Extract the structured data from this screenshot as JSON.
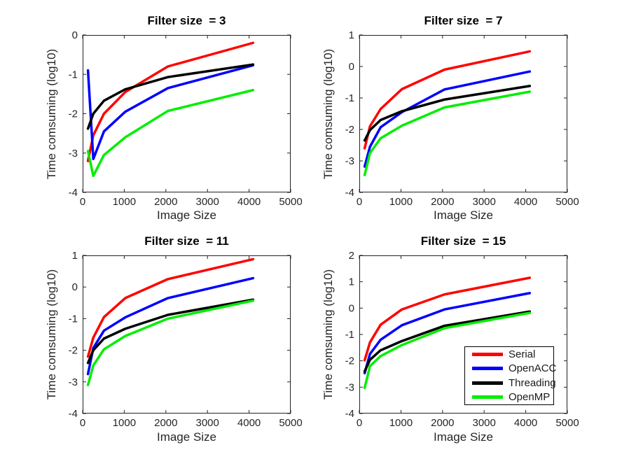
{
  "figure": {
    "background": "#ffffff"
  },
  "series_colors": {
    "Serial": "#ff0000",
    "OpenACC": "#0000ff",
    "Threading": "#000000",
    "OpenMP": "#00ee00"
  },
  "chart_data": [
    {
      "type": "line",
      "title": "Filter size  = 3",
      "xlabel": "Image Size",
      "ylabel": "Time comsuming (log10)",
      "xlim": [
        0,
        5000
      ],
      "ylim": [
        -4,
        0
      ],
      "xticks": [
        0,
        1000,
        2000,
        3000,
        4000,
        5000
      ],
      "yticks": [
        0,
        -1,
        -2,
        -3,
        -4
      ],
      "grid": false,
      "x": [
        128,
        256,
        512,
        1024,
        2048,
        4096
      ],
      "series": [
        {
          "name": "Serial",
          "color": "#ff0000",
          "values": [
            -3.2,
            -2.55,
            -2.0,
            -1.45,
            -0.8,
            -0.2
          ]
        },
        {
          "name": "OpenACC",
          "color": "#0000ff",
          "values": [
            -0.9,
            -3.15,
            -2.45,
            -1.95,
            -1.35,
            -0.77
          ]
        },
        {
          "name": "Threading",
          "color": "#000000",
          "values": [
            -2.38,
            -2.0,
            -1.67,
            -1.38,
            -1.07,
            -0.75
          ]
        },
        {
          "name": "OpenMP",
          "color": "#00ee00",
          "values": [
            -2.95,
            -3.58,
            -3.05,
            -2.6,
            -1.93,
            -1.4
          ]
        }
      ]
    },
    {
      "type": "line",
      "title": "Filter size  = 7",
      "xlabel": "Image Size",
      "ylabel": "Time comsuming (log10)",
      "xlim": [
        0,
        5000
      ],
      "ylim": [
        -4,
        1
      ],
      "xticks": [
        0,
        1000,
        2000,
        3000,
        4000,
        5000
      ],
      "yticks": [
        1,
        0,
        -1,
        -2,
        -3,
        -4
      ],
      "grid": false,
      "x": [
        128,
        256,
        512,
        1024,
        2048,
        4096
      ],
      "series": [
        {
          "name": "Serial",
          "color": "#ff0000",
          "values": [
            -2.6,
            -1.9,
            -1.35,
            -0.72,
            -0.1,
            0.48
          ]
        },
        {
          "name": "OpenACC",
          "color": "#0000ff",
          "values": [
            -3.18,
            -2.55,
            -1.93,
            -1.45,
            -0.73,
            -0.16
          ]
        },
        {
          "name": "Threading",
          "color": "#000000",
          "values": [
            -2.35,
            -2.02,
            -1.7,
            -1.42,
            -1.05,
            -0.62
          ]
        },
        {
          "name": "OpenMP",
          "color": "#00ee00",
          "values": [
            -3.45,
            -2.75,
            -2.28,
            -1.88,
            -1.3,
            -0.8
          ]
        }
      ]
    },
    {
      "type": "line",
      "title": "Filter size  = 11",
      "xlabel": "Image Size",
      "ylabel": "Time comsuming (log10)",
      "xlim": [
        0,
        5000
      ],
      "ylim": [
        -4,
        1
      ],
      "xticks": [
        0,
        1000,
        2000,
        3000,
        4000,
        5000
      ],
      "yticks": [
        1,
        0,
        -1,
        -2,
        -3,
        -4
      ],
      "grid": false,
      "x": [
        128,
        256,
        512,
        1024,
        2048,
        4096
      ],
      "series": [
        {
          "name": "Serial",
          "color": "#ff0000",
          "values": [
            -2.2,
            -1.6,
            -0.95,
            -0.35,
            0.25,
            0.88
          ]
        },
        {
          "name": "OpenACC",
          "color": "#0000ff",
          "values": [
            -2.75,
            -1.93,
            -1.38,
            -0.96,
            -0.35,
            0.28
          ]
        },
        {
          "name": "Threading",
          "color": "#000000",
          "values": [
            -2.4,
            -2.0,
            -1.63,
            -1.32,
            -0.88,
            -0.4
          ]
        },
        {
          "name": "OpenMP",
          "color": "#00ee00",
          "values": [
            -3.1,
            -2.48,
            -1.97,
            -1.55,
            -1.0,
            -0.43
          ]
        }
      ]
    },
    {
      "type": "line",
      "title": "Filter size  = 15",
      "xlabel": "Image Size",
      "ylabel": "Time comsuming (log10)",
      "xlim": [
        0,
        5000
      ],
      "ylim": [
        -4,
        2
      ],
      "xticks": [
        0,
        1000,
        2000,
        3000,
        4000,
        5000
      ],
      "yticks": [
        2,
        1,
        0,
        -1,
        -2,
        -3,
        -4
      ],
      "grid": false,
      "x": [
        128,
        256,
        512,
        1024,
        2048,
        4096
      ],
      "series": [
        {
          "name": "Serial",
          "color": "#ff0000",
          "values": [
            -1.98,
            -1.3,
            -0.63,
            -0.05,
            0.52,
            1.15
          ]
        },
        {
          "name": "OpenACC",
          "color": "#0000ff",
          "values": [
            -2.47,
            -1.74,
            -1.2,
            -0.65,
            -0.05,
            0.57
          ]
        },
        {
          "name": "Threading",
          "color": "#000000",
          "values": [
            -2.4,
            -1.96,
            -1.6,
            -1.25,
            -0.67,
            -0.13
          ]
        },
        {
          "name": "OpenMP",
          "color": "#00ee00",
          "values": [
            -3.03,
            -2.2,
            -1.82,
            -1.4,
            -0.76,
            -0.18
          ]
        }
      ],
      "legend": {
        "position": "inside-bottom-right",
        "entries": [
          {
            "label": "Serial",
            "color": "#ff0000"
          },
          {
            "label": "OpenACC",
            "color": "#0000ff"
          },
          {
            "label": "Threading",
            "color": "#000000"
          },
          {
            "label": "OpenMP",
            "color": "#00ee00"
          }
        ]
      }
    }
  ]
}
